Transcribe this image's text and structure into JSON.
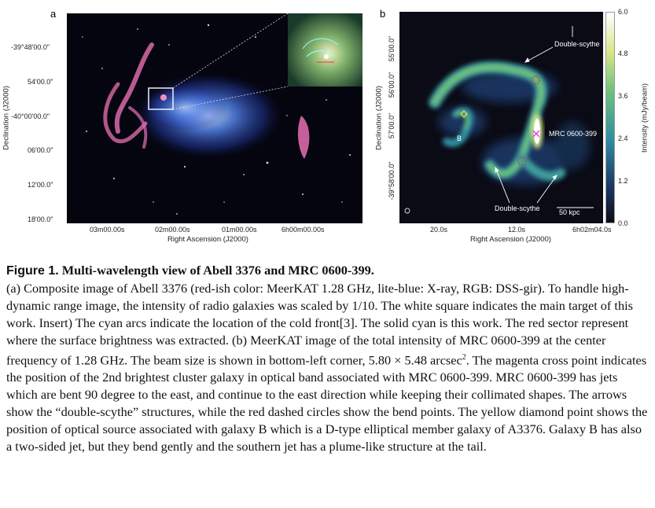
{
  "panel_a": {
    "label": "a",
    "y_title": "Declination (J2000)",
    "x_title": "Right Ascension (J2000)",
    "y_ticks": [
      "-39°48'00.0\"",
      "54'00.0\"",
      "-40°00'00.0\"",
      "06'00.0\"",
      "12'00.0\"",
      "18'00.0\""
    ],
    "x_ticks": [
      "03m00.00s",
      "02m00.00s",
      "01m00.00s",
      "6h00m00.00s"
    ]
  },
  "panel_b": {
    "label": "b",
    "y_title": "Declination (J2000)",
    "x_title": "Right Ascension (J2000)",
    "y_ticks": [
      "55'00.0\"",
      "56'00.0\"",
      "57'00.0\"",
      "-39°58'00.0\""
    ],
    "x_ticks": [
      "20.0s",
      "12.0s",
      "6h02m04.0s"
    ],
    "colorbar_title": "Intensity (mJy/beam)",
    "colorbar_ticks": [
      "6.0",
      "4.8",
      "3.6",
      "2.4",
      "1.2",
      "0.0"
    ],
    "annotations": {
      "double_scythe_top": "Double-scythe",
      "double_scythe_bottom": "Double-scythe",
      "mrc_label": "MRC 0600-399",
      "galaxy_b": "B",
      "scalebar": "50 kpc"
    }
  },
  "caption": {
    "figure_number": "Figure 1.",
    "title": "Multi-wavelength view of Abell 3376 and MRC 0600-399.",
    "body_pre": "(a) Composite image of Abell 3376 (red-ish color: MeerKAT 1.28 GHz, lite-blue: X-ray, RGB: DSS-gir). To handle high-dynamic range image, the intensity of radio galaxies was scaled by 1/10. The white square indicates the main target of this work. Insert) The cyan arcs indicate the location of the cold front[3]. The solid cyan is this work. The red sector represent where the surface brightness was extracted. (b) MeerKAT image of the total intensity of MRC 0600-399 at the center frequency of 1.28 GHz. The beam size is shown in bottom-left corner, 5.80 × 5.48 arcsec",
    "body_sup": "2",
    "body_post": ". The magenta cross point indicates the position of the 2nd brightest cluster galaxy in optical band associated with MRC 0600-399. MRC 0600-399 has jets which are bent 90 degree to the east, and continue to the east direction while keeping their collimated shapes. The arrows show the “double-scythe” structures, while the red dashed circles show the bend points. The yellow diamond point shows the position of optical source associated with galaxy B which is a D-type elliptical member galaxy of A3376. Galaxy B has also a two-sided jet, but they bend gently and the southern jet has a plume-like structure at the tail."
  }
}
